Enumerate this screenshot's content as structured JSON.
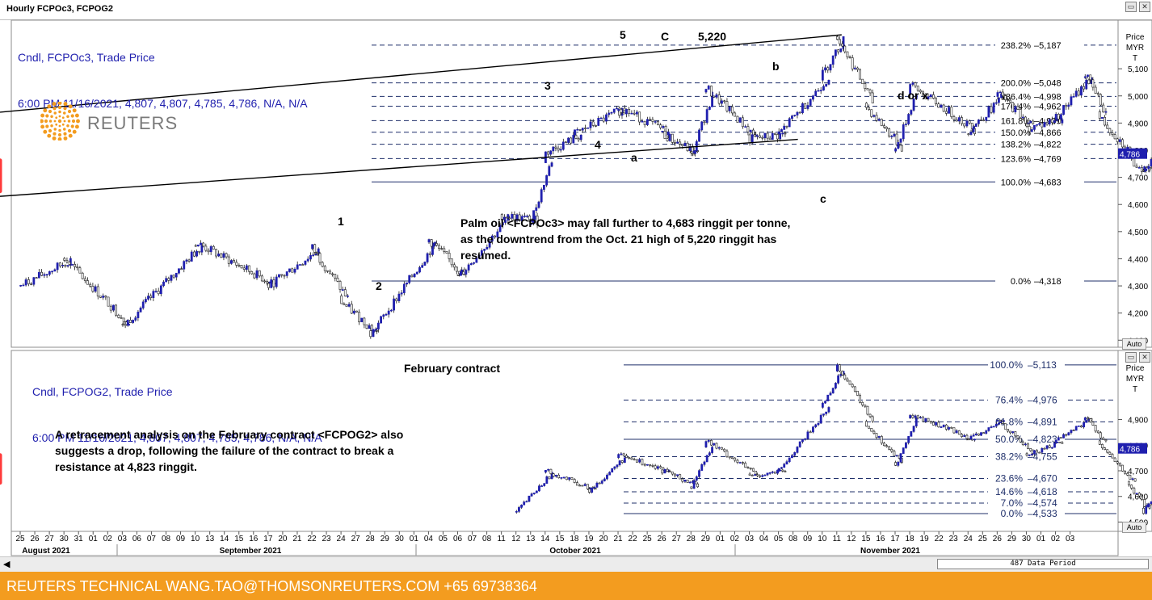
{
  "window": {
    "title": "Hourly FCPOc3, FCPOG2"
  },
  "upper": {
    "legend_line1": "Cndl, FCPOc3, Trade Price",
    "legend_line2": "6:00 PM 11/16/2021, 4,807, 4,807, 4,785, 4,786, N/A, N/A",
    "axis_header": [
      "Price",
      "MYR",
      "T"
    ],
    "current_price_tag": "4,786",
    "auto": "Auto",
    "annotation": "Palm oil <FCPOc3> may fall further to 4,683 ringgit per tonne, as the downtrend from the Oct. 21 high of 5,220 ringgit has resumed.",
    "peak_label": "5,220"
  },
  "lower": {
    "legend_line1": "Cndl, FCPOG2, Trade Price",
    "legend_line2": "6:00 PM 11/16/2021, 4,807, 4,807, 4,785, 4,786, N/A, N/A",
    "axis_header": [
      "Price",
      "MYR",
      "T"
    ],
    "current_price_tag": "4,786",
    "auto": "Auto",
    "title": "February contract",
    "annotation": "A retracement analysis on the February contract <FCPOG2> also suggests a drop, following the failure of the contract to break a resistance at 4,823 ringgit."
  },
  "x_axis": {
    "day_ticks": [
      "25",
      "26",
      "27",
      "30",
      "31",
      "01",
      "02",
      "03",
      "06",
      "07",
      "08",
      "09",
      "10",
      "13",
      "14",
      "15",
      "16",
      "17",
      "20",
      "21",
      "22",
      "23",
      "24",
      "27",
      "28",
      "29",
      "30",
      "01",
      "04",
      "05",
      "06",
      "07",
      "08",
      "11",
      "12",
      "13",
      "14",
      "15",
      "18",
      "19",
      "20",
      "21",
      "22",
      "25",
      "26",
      "27",
      "28",
      "29",
      "01",
      "02",
      "03",
      "04",
      "05",
      "08",
      "09",
      "10",
      "11",
      "12",
      "15",
      "16",
      "17",
      "18",
      "19",
      "22",
      "23",
      "24",
      "25",
      "26",
      "29",
      "30",
      "01",
      "02",
      "03"
    ],
    "months": [
      "August 2021",
      "September 2021",
      "October 2021",
      "November 2021"
    ]
  },
  "status_bar": {
    "period": "487 Data Period"
  },
  "footer": {
    "text": "REUTERS TECHNICAL  WANG.TAO@THOMSONREUTERS.COM  +65 69738364"
  },
  "logo": {
    "text": "REUTERS"
  },
  "colors": {
    "candle_up": "#1f1fae",
    "candle_down": "#ffffff",
    "fib_lines": "#1f2f6a",
    "arrow": "#ff3b3b",
    "footer_bg": "#f39c1f"
  },
  "chart_data": [
    {
      "type": "candlestick",
      "series_label": "FCPOc3",
      "unit": "MYR/T",
      "y_ticks": [
        4100,
        4200,
        4300,
        4400,
        4500,
        4600,
        4700,
        4800,
        4900,
        5000,
        5100
      ],
      "ylim": [
        4080,
        5270
      ],
      "approx_path": [
        {
          "date": "2021-07-23",
          "price": 4300
        },
        {
          "date": "2021-07-28",
          "price": 4400
        },
        {
          "date": "2021-08-03",
          "price": 4150
        },
        {
          "date": "2021-08-10",
          "price": 4460
        },
        {
          "date": "2021-08-17",
          "price": 4300
        },
        {
          "date": "2021-08-20",
          "price": 4440
        },
        {
          "date": "2021-08-24",
          "price": 4240
        },
        {
          "date": "2021-08-26",
          "price": 4120
        },
        {
          "date": "2021-09-01",
          "price": 4470
        },
        {
          "date": "2021-09-03",
          "price": 4330
        },
        {
          "date": "2021-09-08",
          "price": 4560
        },
        {
          "date": "2021-09-10",
          "price": 4540
        },
        {
          "date": "2021-09-13",
          "price": 4790
        },
        {
          "date": "2021-09-15",
          "price": 4860
        },
        {
          "date": "2021-09-20",
          "price": 4960
        },
        {
          "date": "2021-09-23",
          "price": 4860
        },
        {
          "date": "2021-09-27",
          "price": 4780
        },
        {
          "date": "2021-09-28",
          "price": 5030
        },
        {
          "date": "2021-10-01",
          "price": 4840
        },
        {
          "date": "2021-10-05",
          "price": 4860
        },
        {
          "date": "2021-10-08",
          "price": 5080
        },
        {
          "date": "2021-10-11",
          "price": 5220
        },
        {
          "date": "2021-10-13",
          "price": 4960
        },
        {
          "date": "2021-10-15",
          "price": 4800
        },
        {
          "date": "2021-10-18",
          "price": 5040
        },
        {
          "date": "2021-10-22",
          "price": 4870
        },
        {
          "date": "2021-10-26",
          "price": 5010
        },
        {
          "date": "2021-10-28",
          "price": 4880
        },
        {
          "date": "2021-11-01",
          "price": 4920
        },
        {
          "date": "2021-11-03",
          "price": 5080
        },
        {
          "date": "2021-11-04",
          "price": 4920
        },
        {
          "date": "2021-11-08",
          "price": 4760
        },
        {
          "date": "2021-11-09",
          "price": 4720
        },
        {
          "date": "2021-11-10",
          "price": 4880
        },
        {
          "date": "2021-11-11",
          "price": 4980
        },
        {
          "date": "2021-11-12",
          "price": 4880
        },
        {
          "date": "2021-11-15",
          "price": 4930
        },
        {
          "date": "2021-11-16",
          "price": 4786
        }
      ],
      "fib_levels": [
        {
          "label": "238.2%",
          "value": 5187,
          "value_label": "5,187"
        },
        {
          "label": "200.0%",
          "value": 5048,
          "value_label": "5,048"
        },
        {
          "label": "186.4%",
          "value": 4998,
          "value_label": "4,998"
        },
        {
          "label": "176.4%",
          "value": 4962,
          "value_label": "4,962"
        },
        {
          "label": "161.8%",
          "value": 4909,
          "value_label": "4,909"
        },
        {
          "label": "150.0%",
          "value": 4866,
          "value_label": "4,866"
        },
        {
          "label": "138.2%",
          "value": 4822,
          "value_label": "4,822"
        },
        {
          "label": "123.6%",
          "value": 4769,
          "value_label": "4,769"
        },
        {
          "label": "100.0%",
          "value": 4683,
          "value_label": "4,683"
        },
        {
          "label": "0.0%",
          "value": 4318,
          "value_label": "4,318"
        }
      ],
      "wave_labels": [
        {
          "label": "1",
          "date": "2021-08-27",
          "price": 4490
        },
        {
          "label": "2",
          "date": "2021-09-01",
          "price": 4290
        },
        {
          "label": "3",
          "date": "2021-09-28",
          "price": 5050
        },
        {
          "label": "4",
          "date": "2021-10-06",
          "price": 4820
        },
        {
          "label": "5",
          "date": "2021-10-11",
          "price": 5240
        },
        {
          "label": "C",
          "date": "2021-10-14",
          "price": 5240
        },
        {
          "label": "a",
          "date": "2021-10-15",
          "price": 4770
        },
        {
          "label": "b",
          "date": "2021-11-03",
          "price": 5120
        },
        {
          "label": "d or x",
          "date": "2021-11-16",
          "price": 5020
        },
        {
          "label": "c",
          "date": "2021-11-10",
          "price": 4620
        }
      ],
      "channel": [
        {
          "from": {
            "date": "2021-10-11",
            "price": 5225
          },
          "to": {
            "date": "2021-11-22",
            "price": 4940
          }
        },
        {
          "from": {
            "date": "2021-10-06",
            "price": 4840
          },
          "to": {
            "date": "2021-11-18",
            "price": 4630
          }
        }
      ]
    },
    {
      "type": "candlestick",
      "series_label": "FCPOG2",
      "unit": "MYR/T",
      "y_ticks": [
        4500,
        4600,
        4700,
        4800,
        4900
      ],
      "ylim": [
        4470,
        5160
      ],
      "approx_path": [
        {
          "date": "2021-09-09",
          "price": 4540
        },
        {
          "date": "2021-09-13",
          "price": 4700
        },
        {
          "date": "2021-09-16",
          "price": 4620
        },
        {
          "date": "2021-09-20",
          "price": 4760
        },
        {
          "date": "2021-09-23",
          "price": 4700
        },
        {
          "date": "2021-09-27",
          "price": 4640
        },
        {
          "date": "2021-09-28",
          "price": 4820
        },
        {
          "date": "2021-10-01",
          "price": 4680
        },
        {
          "date": "2021-10-05",
          "price": 4700
        },
        {
          "date": "2021-10-08",
          "price": 4960
        },
        {
          "date": "2021-10-11",
          "price": 5113
        },
        {
          "date": "2021-10-13",
          "price": 4880
        },
        {
          "date": "2021-10-15",
          "price": 4720
        },
        {
          "date": "2021-10-18",
          "price": 4920
        },
        {
          "date": "2021-10-22",
          "price": 4820
        },
        {
          "date": "2021-10-26",
          "price": 4900
        },
        {
          "date": "2021-10-28",
          "price": 4760
        },
        {
          "date": "2021-11-01",
          "price": 4820
        },
        {
          "date": "2021-11-03",
          "price": 4910
        },
        {
          "date": "2021-11-04",
          "price": 4800
        },
        {
          "date": "2021-11-08",
          "price": 4640
        },
        {
          "date": "2021-11-09",
          "price": 4533
        },
        {
          "date": "2021-11-10",
          "price": 4680
        },
        {
          "date": "2021-11-11",
          "price": 4780
        },
        {
          "date": "2021-11-12",
          "price": 4700
        },
        {
          "date": "2021-11-15",
          "price": 4820
        },
        {
          "date": "2021-11-16",
          "price": 4786
        }
      ],
      "fib_levels": [
        {
          "label": "100.0%",
          "value": 5113,
          "value_label": "5,113"
        },
        {
          "label": "76.4%",
          "value": 4976,
          "value_label": "4,976"
        },
        {
          "label": "61.8%",
          "value": 4891,
          "value_label": "4,891"
        },
        {
          "label": "50.0%",
          "value": 4823,
          "value_label": "4,823"
        },
        {
          "label": "38.2%",
          "value": 4755,
          "value_label": "4,755"
        },
        {
          "label": "23.6%",
          "value": 4670,
          "value_label": "4,670"
        },
        {
          "label": "14.6%",
          "value": 4618,
          "value_label": "4,618"
        },
        {
          "label": "7.0%",
          "value": 4574,
          "value_label": "4,574"
        },
        {
          "label": "0.0%",
          "value": 4533,
          "value_label": "4,533"
        }
      ]
    }
  ]
}
